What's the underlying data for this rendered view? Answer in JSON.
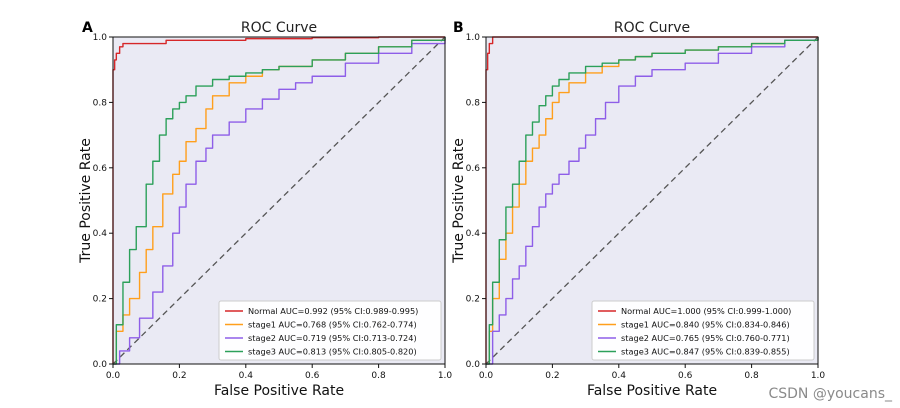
{
  "watermark": "CSDN @youcans_",
  "chart_data": [
    {
      "type": "line",
      "panel_label": "A",
      "title": "ROC Curve",
      "xlabel": "False Positive Rate",
      "ylabel": "True Positive Rate",
      "xlim": [
        0,
        1
      ],
      "ylim": [
        0,
        1
      ],
      "x_ticks": [
        "0.0",
        "0.2",
        "0.4",
        "0.6",
        "0.8",
        "1.0"
      ],
      "y_ticks": [
        "0.0",
        "0.2",
        "0.4",
        "0.6",
        "0.8",
        "1.0"
      ],
      "legend_position": "bottom-right",
      "diagonal": {
        "x": [
          0,
          1
        ],
        "y": [
          0,
          1
        ],
        "color": "#555555",
        "style": "dashed"
      },
      "series": [
        {
          "name": "Normal",
          "label": "Normal AUC=0.992 (95% CI:0.989-0.995)",
          "color": "#d62728",
          "x": [
            0,
            0,
            0.005,
            0.01,
            0.02,
            0.03,
            0.05,
            0.15,
            0.16,
            0.3,
            0.4,
            0.6,
            0.8,
            1
          ],
          "y": [
            0,
            0.9,
            0.93,
            0.95,
            0.97,
            0.98,
            0.98,
            0.98,
            0.99,
            0.99,
            0.995,
            0.998,
            1,
            1
          ]
        },
        {
          "name": "stage1",
          "label": "stage1 AUC=0.768 (95% CI:0.762-0.774)",
          "color": "#ff9f1c",
          "x": [
            0,
            0.01,
            0.03,
            0.05,
            0.08,
            0.1,
            0.12,
            0.15,
            0.18,
            0.2,
            0.22,
            0.25,
            0.28,
            0.3,
            0.35,
            0.4,
            0.45,
            0.5,
            0.6,
            0.7,
            0.8,
            0.9,
            1
          ],
          "y": [
            0,
            0.1,
            0.15,
            0.2,
            0.28,
            0.35,
            0.42,
            0.52,
            0.58,
            0.62,
            0.68,
            0.72,
            0.78,
            0.82,
            0.86,
            0.88,
            0.9,
            0.91,
            0.93,
            0.95,
            0.97,
            0.99,
            1
          ]
        },
        {
          "name": "stage2",
          "label": "stage2 AUC=0.719 (95% CI:0.713-0.724)",
          "color": "#8e5ee8",
          "x": [
            0,
            0.02,
            0.05,
            0.08,
            0.12,
            0.15,
            0.18,
            0.2,
            0.22,
            0.25,
            0.28,
            0.3,
            0.35,
            0.4,
            0.45,
            0.5,
            0.55,
            0.6,
            0.7,
            0.8,
            0.9,
            1
          ],
          "y": [
            0,
            0.04,
            0.08,
            0.14,
            0.22,
            0.3,
            0.4,
            0.48,
            0.55,
            0.62,
            0.66,
            0.7,
            0.74,
            0.78,
            0.81,
            0.84,
            0.86,
            0.88,
            0.92,
            0.95,
            0.98,
            1
          ]
        },
        {
          "name": "stage3",
          "label": "stage3 AUC=0.813 (95% CI:0.805-0.820)",
          "color": "#2ca05a",
          "x": [
            0,
            0.01,
            0.03,
            0.05,
            0.07,
            0.1,
            0.12,
            0.14,
            0.16,
            0.18,
            0.2,
            0.22,
            0.25,
            0.3,
            0.35,
            0.4,
            0.45,
            0.5,
            0.6,
            0.7,
            0.8,
            0.9,
            1
          ],
          "y": [
            0,
            0.12,
            0.25,
            0.35,
            0.42,
            0.55,
            0.62,
            0.7,
            0.75,
            0.78,
            0.8,
            0.82,
            0.85,
            0.87,
            0.88,
            0.89,
            0.9,
            0.91,
            0.93,
            0.95,
            0.97,
            0.99,
            1
          ]
        }
      ]
    },
    {
      "type": "line",
      "panel_label": "B",
      "title": "ROC Curve",
      "xlabel": "False Positive Rate",
      "ylabel": "True Positive Rate",
      "xlim": [
        0,
        1
      ],
      "ylim": [
        0,
        1
      ],
      "x_ticks": [
        "0.0",
        "0.2",
        "0.4",
        "0.6",
        "0.8",
        "1.0"
      ],
      "y_ticks": [
        "0.0",
        "0.2",
        "0.4",
        "0.6",
        "0.8",
        "1.0"
      ],
      "legend_position": "bottom-right",
      "diagonal": {
        "x": [
          0,
          1
        ],
        "y": [
          0,
          1
        ],
        "color": "#555555",
        "style": "dashed"
      },
      "series": [
        {
          "name": "Normal",
          "label": "Normal AUC=1.000 (95% CI:0.999-1.000)",
          "color": "#d62728",
          "x": [
            0,
            0,
            0.005,
            0.01,
            0.02,
            1
          ],
          "y": [
            0,
            0.9,
            0.95,
            0.98,
            1,
            1
          ]
        },
        {
          "name": "stage1",
          "label": "stage1 AUC=0.840 (95% CI:0.834-0.846)",
          "color": "#ff9f1c",
          "x": [
            0,
            0.01,
            0.02,
            0.04,
            0.06,
            0.08,
            0.1,
            0.12,
            0.14,
            0.16,
            0.18,
            0.2,
            0.22,
            0.25,
            0.3,
            0.35,
            0.4,
            0.45,
            0.5,
            0.6,
            0.7,
            0.8,
            0.9,
            1
          ],
          "y": [
            0,
            0.1,
            0.2,
            0.32,
            0.4,
            0.48,
            0.55,
            0.62,
            0.66,
            0.7,
            0.75,
            0.8,
            0.83,
            0.86,
            0.89,
            0.91,
            0.93,
            0.94,
            0.95,
            0.96,
            0.97,
            0.98,
            0.99,
            1
          ]
        },
        {
          "name": "stage2",
          "label": "stage2 AUC=0.765 (95% CI:0.760-0.771)",
          "color": "#8e5ee8",
          "x": [
            0,
            0.02,
            0.04,
            0.06,
            0.08,
            0.1,
            0.12,
            0.14,
            0.16,
            0.18,
            0.2,
            0.22,
            0.25,
            0.28,
            0.3,
            0.33,
            0.36,
            0.4,
            0.45,
            0.5,
            0.6,
            0.7,
            0.8,
            0.9,
            1
          ],
          "y": [
            0,
            0.1,
            0.15,
            0.2,
            0.26,
            0.3,
            0.36,
            0.42,
            0.48,
            0.52,
            0.55,
            0.58,
            0.62,
            0.66,
            0.7,
            0.75,
            0.8,
            0.85,
            0.88,
            0.9,
            0.92,
            0.95,
            0.97,
            0.99,
            1
          ]
        },
        {
          "name": "stage3",
          "label": "stage3 AUC=0.847 (95% CI:0.839-0.855)",
          "color": "#2ca05a",
          "x": [
            0,
            0.01,
            0.02,
            0.04,
            0.06,
            0.08,
            0.1,
            0.12,
            0.14,
            0.16,
            0.18,
            0.2,
            0.22,
            0.25,
            0.3,
            0.35,
            0.4,
            0.45,
            0.5,
            0.6,
            0.7,
            0.8,
            0.9,
            1
          ],
          "y": [
            0,
            0.12,
            0.25,
            0.38,
            0.48,
            0.55,
            0.62,
            0.7,
            0.74,
            0.79,
            0.82,
            0.85,
            0.87,
            0.89,
            0.91,
            0.92,
            0.93,
            0.94,
            0.95,
            0.96,
            0.97,
            0.98,
            0.99,
            1
          ]
        }
      ]
    }
  ]
}
